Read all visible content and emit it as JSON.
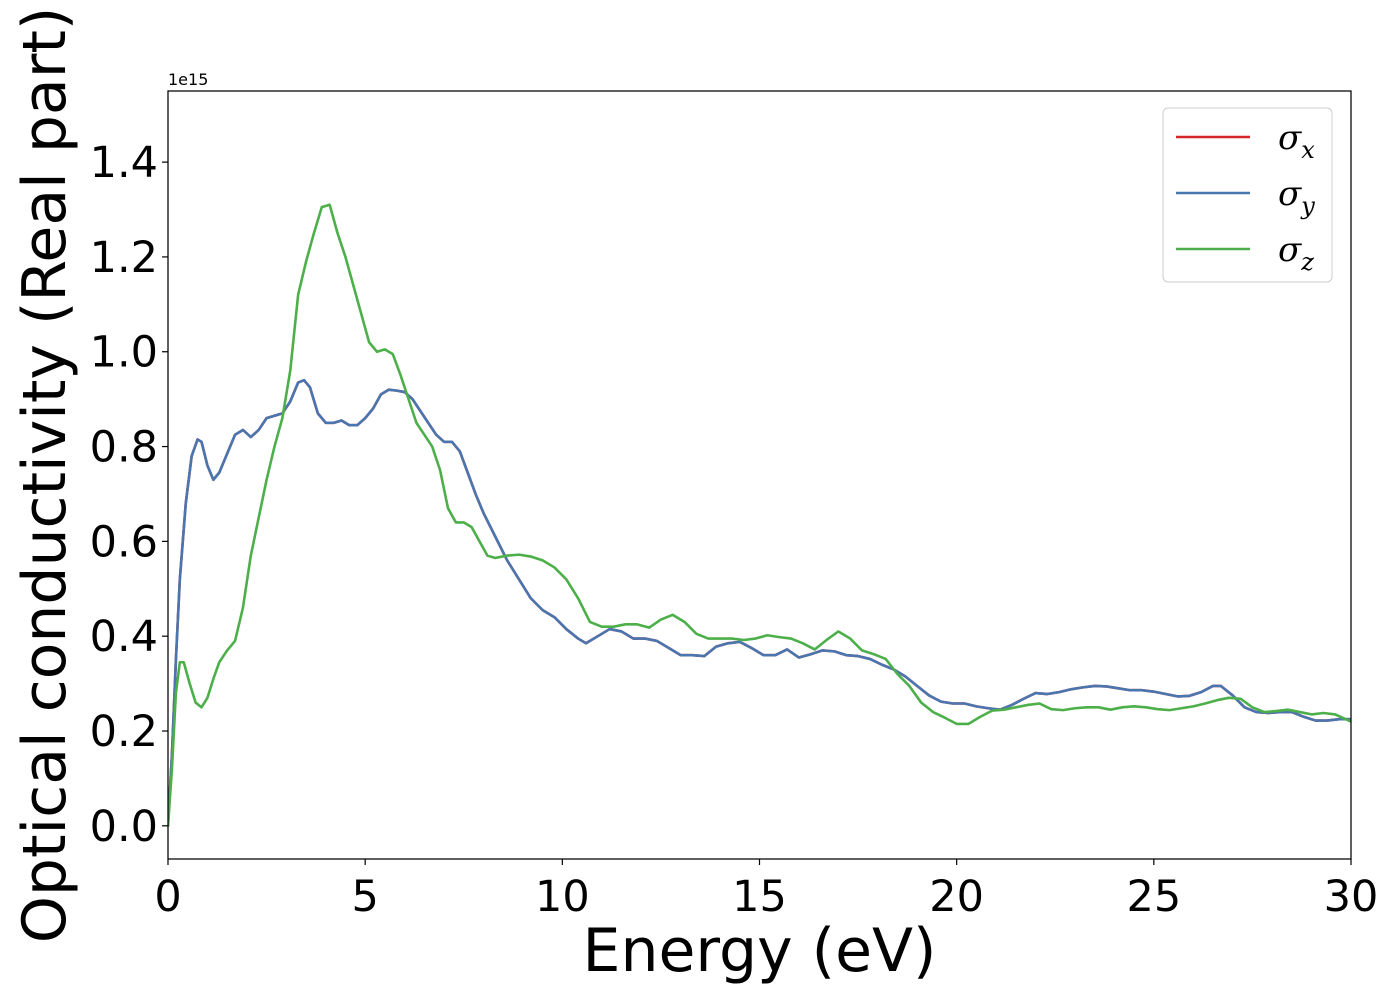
{
  "chart_data": {
    "type": "line",
    "xlabel": "Energy (eV)",
    "ylabel": "Optical conductivity (Real part)",
    "y_offset_text": "1e15",
    "y_scale_multiplier": 1000000000000000.0,
    "xlim": [
      0,
      30
    ],
    "ylim": [
      -0.07,
      1.55
    ],
    "x_ticks": [
      {
        "value": 0,
        "label": "0"
      },
      {
        "value": 5,
        "label": "5"
      },
      {
        "value": 10,
        "label": "10"
      },
      {
        "value": 15,
        "label": "15"
      },
      {
        "value": 20,
        "label": "20"
      },
      {
        "value": 25,
        "label": "25"
      },
      {
        "value": 30,
        "label": "30"
      }
    ],
    "y_ticks": [
      {
        "value": 0.0,
        "label": "0.0"
      },
      {
        "value": 0.2,
        "label": "0.2"
      },
      {
        "value": 0.4,
        "label": "0.4"
      },
      {
        "value": 0.6,
        "label": "0.6"
      },
      {
        "value": 0.8,
        "label": "0.8"
      },
      {
        "value": 1.0,
        "label": "1.0"
      },
      {
        "value": 1.2,
        "label": "1.2"
      },
      {
        "value": 1.4,
        "label": "1.4"
      }
    ],
    "grid": false,
    "legend_position": "top-right",
    "series": [
      {
        "name": "σx",
        "legend_base": "σ",
        "legend_sub": "x",
        "color": "#d62728",
        "x": [
          0,
          0.1,
          0.2,
          0.3,
          0.45,
          0.6,
          0.75,
          0.85,
          1.0,
          1.15,
          1.3,
          1.5,
          1.7,
          1.9,
          2.1,
          2.3,
          2.5,
          2.7,
          2.9,
          3.1,
          3.3,
          3.45,
          3.6,
          3.8,
          4.0,
          4.2,
          4.4,
          4.6,
          4.8,
          5.0,
          5.2,
          5.4,
          5.6,
          5.8,
          6.0,
          6.2,
          6.4,
          6.6,
          6.8,
          7.0,
          7.2,
          7.4,
          7.6,
          7.8,
          8.0,
          8.3,
          8.6,
          8.9,
          9.2,
          9.5,
          9.8,
          10.1,
          10.4,
          10.6,
          10.9,
          11.2,
          11.5,
          11.8,
          12.1,
          12.4,
          12.7,
          13.0,
          13.3,
          13.6,
          13.9,
          14.2,
          14.5,
          14.8,
          15.1,
          15.4,
          15.7,
          16.0,
          16.3,
          16.6,
          16.9,
          17.2,
          17.5,
          17.8,
          18.1,
          18.4,
          18.7,
          19.0,
          19.3,
          19.6,
          19.9,
          20.2,
          20.5,
          20.8,
          21.1,
          21.4,
          21.7,
          22.0,
          22.3,
          22.6,
          22.9,
          23.2,
          23.5,
          23.8,
          24.1,
          24.4,
          24.7,
          25.0,
          25.3,
          25.6,
          25.9,
          26.2,
          26.5,
          26.7,
          27.0,
          27.3,
          27.6,
          27.9,
          28.2,
          28.5,
          28.8,
          29.1,
          29.4,
          29.7,
          30.0
        ],
        "values": [
          0.0,
          0.15,
          0.35,
          0.52,
          0.68,
          0.78,
          0.815,
          0.81,
          0.76,
          0.73,
          0.745,
          0.785,
          0.825,
          0.835,
          0.82,
          0.835,
          0.86,
          0.865,
          0.87,
          0.895,
          0.935,
          0.94,
          0.925,
          0.87,
          0.85,
          0.85,
          0.855,
          0.845,
          0.845,
          0.86,
          0.88,
          0.91,
          0.92,
          0.918,
          0.915,
          0.9,
          0.875,
          0.85,
          0.825,
          0.81,
          0.81,
          0.79,
          0.745,
          0.7,
          0.66,
          0.61,
          0.56,
          0.52,
          0.48,
          0.455,
          0.44,
          0.415,
          0.395,
          0.385,
          0.4,
          0.415,
          0.41,
          0.395,
          0.395,
          0.39,
          0.375,
          0.36,
          0.36,
          0.358,
          0.378,
          0.385,
          0.388,
          0.375,
          0.36,
          0.36,
          0.372,
          0.355,
          0.362,
          0.37,
          0.368,
          0.36,
          0.358,
          0.352,
          0.34,
          0.33,
          0.315,
          0.295,
          0.275,
          0.262,
          0.258,
          0.258,
          0.252,
          0.248,
          0.245,
          0.255,
          0.268,
          0.28,
          0.278,
          0.282,
          0.288,
          0.292,
          0.295,
          0.294,
          0.29,
          0.286,
          0.286,
          0.283,
          0.278,
          0.273,
          0.274,
          0.282,
          0.295,
          0.295,
          0.275,
          0.25,
          0.24,
          0.238,
          0.24,
          0.24,
          0.23,
          0.222,
          0.222,
          0.225,
          0.225
        ]
      },
      {
        "name": "σy",
        "legend_base": "σ",
        "legend_sub": "y",
        "color": "#4a76b0",
        "x": [
          0,
          0.1,
          0.2,
          0.3,
          0.45,
          0.6,
          0.75,
          0.85,
          1.0,
          1.15,
          1.3,
          1.5,
          1.7,
          1.9,
          2.1,
          2.3,
          2.5,
          2.7,
          2.9,
          3.1,
          3.3,
          3.45,
          3.6,
          3.8,
          4.0,
          4.2,
          4.4,
          4.6,
          4.8,
          5.0,
          5.2,
          5.4,
          5.6,
          5.8,
          6.0,
          6.2,
          6.4,
          6.6,
          6.8,
          7.0,
          7.2,
          7.4,
          7.6,
          7.8,
          8.0,
          8.3,
          8.6,
          8.9,
          9.2,
          9.5,
          9.8,
          10.1,
          10.4,
          10.6,
          10.9,
          11.2,
          11.5,
          11.8,
          12.1,
          12.4,
          12.7,
          13.0,
          13.3,
          13.6,
          13.9,
          14.2,
          14.5,
          14.8,
          15.1,
          15.4,
          15.7,
          16.0,
          16.3,
          16.6,
          16.9,
          17.2,
          17.5,
          17.8,
          18.1,
          18.4,
          18.7,
          19.0,
          19.3,
          19.6,
          19.9,
          20.2,
          20.5,
          20.8,
          21.1,
          21.4,
          21.7,
          22.0,
          22.3,
          22.6,
          22.9,
          23.2,
          23.5,
          23.8,
          24.1,
          24.4,
          24.7,
          25.0,
          25.3,
          25.6,
          25.9,
          26.2,
          26.5,
          26.7,
          27.0,
          27.3,
          27.6,
          27.9,
          28.2,
          28.5,
          28.8,
          29.1,
          29.4,
          29.7,
          30.0
        ],
        "values": [
          0.0,
          0.15,
          0.35,
          0.52,
          0.68,
          0.78,
          0.815,
          0.81,
          0.76,
          0.73,
          0.745,
          0.785,
          0.825,
          0.835,
          0.82,
          0.835,
          0.86,
          0.865,
          0.87,
          0.895,
          0.935,
          0.94,
          0.925,
          0.87,
          0.85,
          0.85,
          0.855,
          0.845,
          0.845,
          0.86,
          0.88,
          0.91,
          0.92,
          0.918,
          0.915,
          0.9,
          0.875,
          0.85,
          0.825,
          0.81,
          0.81,
          0.79,
          0.745,
          0.7,
          0.66,
          0.61,
          0.56,
          0.52,
          0.48,
          0.455,
          0.44,
          0.415,
          0.395,
          0.385,
          0.4,
          0.415,
          0.41,
          0.395,
          0.395,
          0.39,
          0.375,
          0.36,
          0.36,
          0.358,
          0.378,
          0.385,
          0.388,
          0.375,
          0.36,
          0.36,
          0.372,
          0.355,
          0.362,
          0.37,
          0.368,
          0.36,
          0.358,
          0.352,
          0.34,
          0.33,
          0.315,
          0.295,
          0.275,
          0.262,
          0.258,
          0.258,
          0.252,
          0.248,
          0.245,
          0.255,
          0.268,
          0.28,
          0.278,
          0.282,
          0.288,
          0.292,
          0.295,
          0.294,
          0.29,
          0.286,
          0.286,
          0.283,
          0.278,
          0.273,
          0.274,
          0.282,
          0.295,
          0.295,
          0.275,
          0.25,
          0.24,
          0.238,
          0.24,
          0.24,
          0.23,
          0.222,
          0.222,
          0.225,
          0.225
        ]
      },
      {
        "name": "σz",
        "legend_base": "σ",
        "legend_sub": "z",
        "color": "#4daf4a",
        "x": [
          0,
          0.1,
          0.2,
          0.3,
          0.4,
          0.55,
          0.7,
          0.85,
          1.0,
          1.15,
          1.3,
          1.5,
          1.7,
          1.9,
          2.1,
          2.3,
          2.5,
          2.7,
          2.9,
          3.1,
          3.3,
          3.5,
          3.7,
          3.9,
          4.1,
          4.3,
          4.5,
          4.7,
          4.9,
          5.1,
          5.3,
          5.5,
          5.7,
          5.9,
          6.1,
          6.3,
          6.5,
          6.7,
          6.9,
          7.1,
          7.3,
          7.5,
          7.7,
          7.9,
          8.1,
          8.3,
          8.6,
          8.9,
          9.2,
          9.5,
          9.8,
          10.1,
          10.4,
          10.7,
          11.0,
          11.3,
          11.6,
          11.9,
          12.2,
          12.5,
          12.8,
          13.1,
          13.4,
          13.7,
          14.0,
          14.3,
          14.6,
          14.9,
          15.2,
          15.5,
          15.8,
          16.1,
          16.4,
          16.7,
          17.0,
          17.3,
          17.6,
          17.9,
          18.2,
          18.5,
          18.8,
          19.1,
          19.4,
          19.7,
          20.0,
          20.3,
          20.6,
          20.9,
          21.2,
          21.5,
          21.8,
          22.1,
          22.4,
          22.7,
          23.0,
          23.3,
          23.6,
          23.9,
          24.2,
          24.5,
          24.8,
          25.1,
          25.4,
          25.7,
          26.0,
          26.3,
          26.6,
          26.9,
          27.2,
          27.5,
          27.8,
          28.1,
          28.4,
          28.7,
          29.0,
          29.3,
          29.6,
          30.0
        ],
        "values": [
          0.0,
          0.12,
          0.28,
          0.345,
          0.345,
          0.3,
          0.26,
          0.25,
          0.27,
          0.31,
          0.345,
          0.37,
          0.39,
          0.46,
          0.57,
          0.65,
          0.73,
          0.8,
          0.86,
          0.96,
          1.12,
          1.19,
          1.25,
          1.305,
          1.31,
          1.25,
          1.2,
          1.14,
          1.08,
          1.02,
          1.0,
          1.005,
          0.995,
          0.95,
          0.9,
          0.85,
          0.825,
          0.8,
          0.75,
          0.67,
          0.64,
          0.64,
          0.63,
          0.6,
          0.57,
          0.565,
          0.57,
          0.572,
          0.568,
          0.56,
          0.545,
          0.52,
          0.48,
          0.43,
          0.42,
          0.42,
          0.425,
          0.425,
          0.418,
          0.435,
          0.445,
          0.43,
          0.405,
          0.395,
          0.395,
          0.395,
          0.392,
          0.395,
          0.402,
          0.398,
          0.395,
          0.385,
          0.372,
          0.392,
          0.41,
          0.395,
          0.37,
          0.362,
          0.352,
          0.32,
          0.295,
          0.26,
          0.24,
          0.228,
          0.215,
          0.215,
          0.23,
          0.243,
          0.245,
          0.25,
          0.255,
          0.258,
          0.246,
          0.244,
          0.248,
          0.25,
          0.25,
          0.245,
          0.25,
          0.252,
          0.25,
          0.246,
          0.244,
          0.248,
          0.252,
          0.258,
          0.265,
          0.27,
          0.268,
          0.25,
          0.24,
          0.242,
          0.245,
          0.24,
          0.235,
          0.238,
          0.235,
          0.22
        ]
      }
    ]
  }
}
